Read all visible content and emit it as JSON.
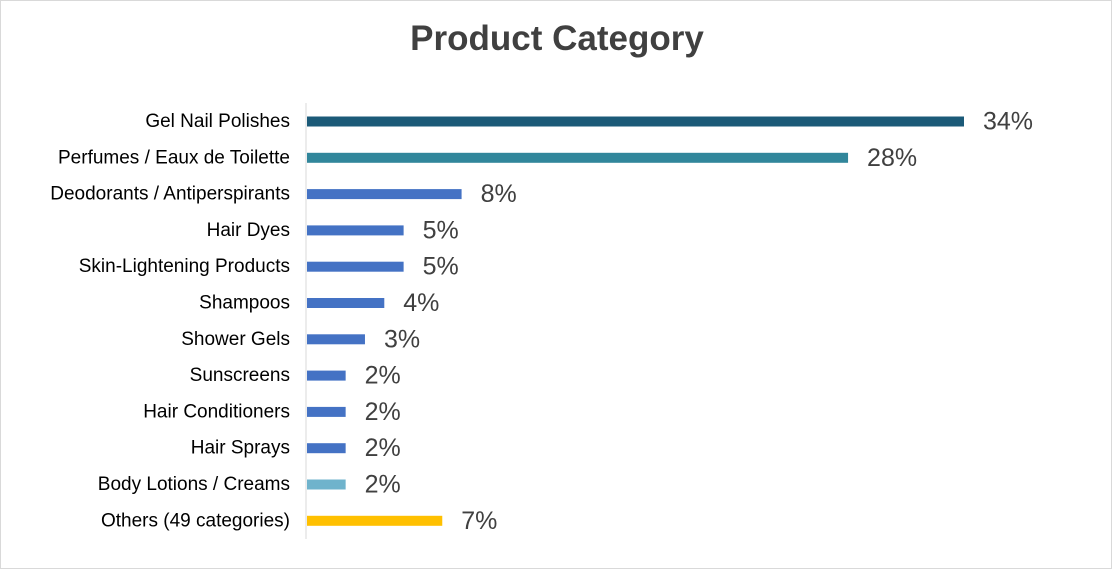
{
  "chart_data": {
    "type": "bar",
    "orientation": "horizontal",
    "title": "Product Category",
    "categories": [
      "Gel Nail Polishes",
      "Perfumes / Eaux de Toilette",
      "Deodorants / Antiperspirants",
      "Hair Dyes",
      "Skin-Lightening Products",
      "Shampoos",
      "Shower Gels",
      "Sunscreens",
      "Hair Conditioners",
      "Hair Sprays",
      "Body Lotions / Creams",
      "Others (49 categories)"
    ],
    "values": [
      34,
      28,
      8,
      5,
      5,
      4,
      3,
      2,
      2,
      2,
      2,
      7
    ],
    "value_labels": [
      "34%",
      "28%",
      "8%",
      "5%",
      "5%",
      "4%",
      "3%",
      "2%",
      "2%",
      "2%",
      "2%",
      "7%"
    ],
    "colors": [
      "#1b5a78",
      "#31869b",
      "#4472c4",
      "#4472c4",
      "#4472c4",
      "#4472c4",
      "#4472c4",
      "#4472c4",
      "#4472c4",
      "#4472c4",
      "#6fb3cc",
      "#ffc000"
    ],
    "unit": "%",
    "xlim": [
      0,
      34
    ],
    "grid": false,
    "legend": "none"
  }
}
